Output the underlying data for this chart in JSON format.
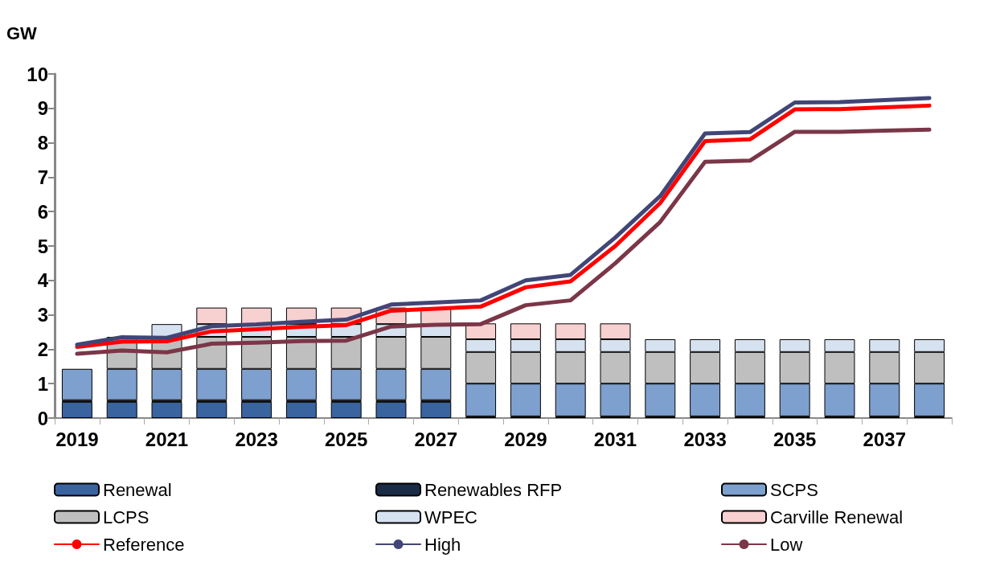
{
  "chart_data": {
    "type": "bar",
    "ylabel": "GW",
    "stacked": true,
    "categories": [
      "2019",
      null,
      "2021",
      null,
      "2023",
      null,
      "2025",
      null,
      "2027",
      null,
      "2029",
      null,
      "2031",
      null,
      "2033",
      null,
      "2035",
      null,
      "2037",
      null
    ],
    "series": [
      {
        "name": "Renewal",
        "color": "#3a64a0",
        "values": [
          0.47,
          0.47,
          0.47,
          0.47,
          0.47,
          0.47,
          0.47,
          0.47,
          0.47,
          0,
          0,
          0,
          0,
          0,
          0,
          0,
          0,
          0,
          0,
          0
        ]
      },
      {
        "name": "Renewables RFP",
        "color": "#1a2b45",
        "values": [
          0.05,
          0.05,
          0.05,
          0.05,
          0.05,
          0.05,
          0.05,
          0.05,
          0.05,
          0.05,
          0.05,
          0.05,
          0.05,
          0.05,
          0.05,
          0.05,
          0.05,
          0.05,
          0.05,
          0.05
        ]
      },
      {
        "name": "SCPS",
        "color": "#7ea0cf",
        "values": [
          0.91,
          0.91,
          0.91,
          0.91,
          0.91,
          0.91,
          0.91,
          0.91,
          0.91,
          0.95,
          0.95,
          0.95,
          0.95,
          0.95,
          0.95,
          0.95,
          0.95,
          0.95,
          0.95,
          0.95
        ]
      },
      {
        "name": "LCPS",
        "color": "#bfbfbf",
        "values": [
          0,
          0.93,
          0.93,
          0.93,
          0.93,
          0.93,
          0.93,
          0.93,
          0.93,
          0.92,
          0.92,
          0.92,
          0.92,
          0.92,
          0.92,
          0.92,
          0.92,
          0.92,
          0.92,
          0.92
        ]
      },
      {
        "name": "WPEC",
        "color": "#d6e2f0",
        "values": [
          0,
          0,
          0.37,
          0.37,
          0.37,
          0.37,
          0.37,
          0.37,
          0.37,
          0.37,
          0.37,
          0.37,
          0.37,
          0.37,
          0.37,
          0.37,
          0.37,
          0.37,
          0.37,
          0.37
        ]
      },
      {
        "name": "Carville Renewal",
        "color": "#f7d0d0",
        "values": [
          0,
          0,
          0,
          0.48,
          0.48,
          0.48,
          0.48,
          0.48,
          0.48,
          0.46,
          0.46,
          0.46,
          0.46,
          0,
          0,
          0,
          0,
          0,
          0,
          0
        ]
      },
      {
        "name": "Reference",
        "type": "line",
        "color": "#ff0000",
        "values": [
          2.07,
          2.22,
          2.23,
          2.52,
          2.58,
          2.65,
          2.7,
          3.12,
          3.18,
          3.24,
          3.8,
          3.97,
          5.0,
          6.25,
          8.05,
          8.1,
          8.97,
          8.98,
          9.03,
          9.08
        ]
      },
      {
        "name": "High",
        "type": "line",
        "color": "#414677",
        "values": [
          2.13,
          2.35,
          2.33,
          2.67,
          2.72,
          2.8,
          2.86,
          3.3,
          3.36,
          3.42,
          4.0,
          4.16,
          5.25,
          6.45,
          8.27,
          8.31,
          9.17,
          9.18,
          9.24,
          9.3
        ]
      },
      {
        "name": "Low",
        "type": "line",
        "color": "#7b3648",
        "values": [
          1.87,
          1.96,
          1.91,
          2.16,
          2.19,
          2.24,
          2.25,
          2.66,
          2.71,
          2.73,
          3.28,
          3.42,
          4.5,
          5.7,
          7.45,
          7.48,
          8.32,
          8.32,
          8.35,
          8.38
        ]
      }
    ],
    "ylim": [
      0,
      10
    ],
    "yticks": [
      0,
      1,
      2,
      3,
      4,
      5,
      6,
      7,
      8,
      9,
      10
    ],
    "grid": false,
    "legend": "bottom",
    "marker": "none",
    "line_style": "solid"
  }
}
